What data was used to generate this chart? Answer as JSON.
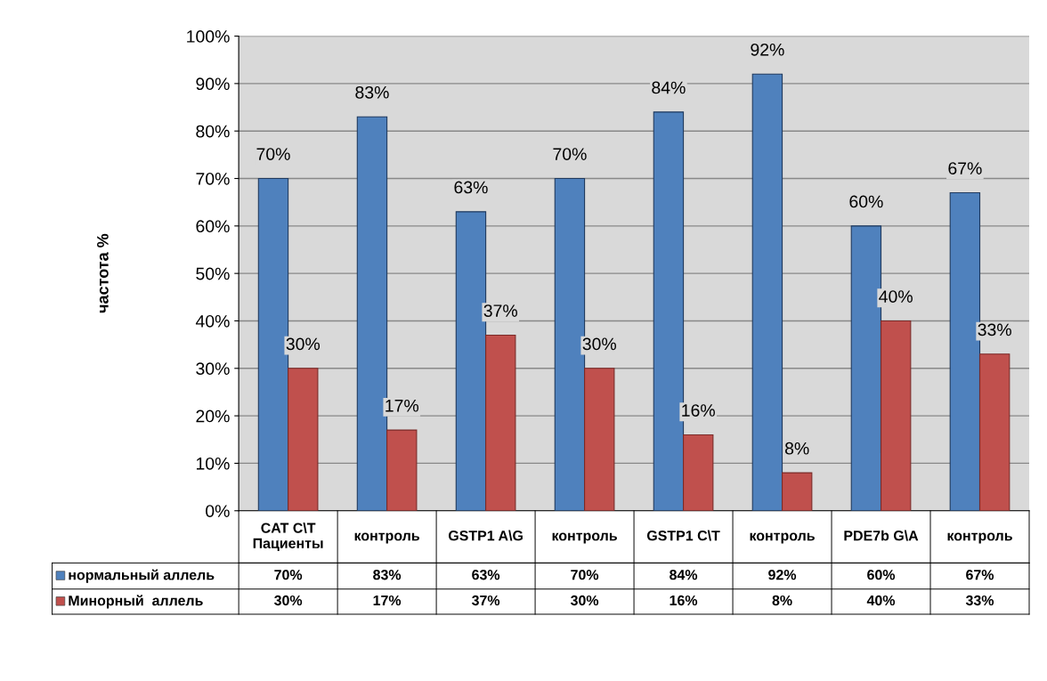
{
  "chart_data": {
    "type": "bar",
    "ylabel": "частота %",
    "categories": [
      "CAT C\\T\nПациенты",
      "контроль",
      "GSTP1 A\\G",
      "контроль",
      "GSTP1 C\\T",
      "контроль",
      "PDE7b G\\A",
      "контроль"
    ],
    "series": [
      {
        "name": "нормальный аллель",
        "color": "#4f81bd",
        "values": [
          70,
          83,
          63,
          70,
          84,
          92,
          60,
          67
        ],
        "value_labels": [
          "70%",
          "83%",
          "63%",
          "70%",
          "84%",
          "92%",
          "60%",
          "67%"
        ]
      },
      {
        "name": "Минорный  аллель",
        "color": "#c0504d",
        "values": [
          30,
          17,
          37,
          30,
          16,
          8,
          40,
          33
        ],
        "value_labels": [
          "30%",
          "17%",
          "37%",
          "30%",
          "16%",
          "8%",
          "40%",
          "33%"
        ]
      }
    ],
    "ylim": [
      0,
      100
    ],
    "yticks": [
      {
        "value": 0,
        "label": "0%"
      },
      {
        "value": 10,
        "label": "10%"
      },
      {
        "value": 20,
        "label": "20%"
      },
      {
        "value": 30,
        "label": "30%"
      },
      {
        "value": 40,
        "label": "40%"
      },
      {
        "value": 50,
        "label": "50%"
      },
      {
        "value": 60,
        "label": "60%"
      },
      {
        "value": 70,
        "label": "70%"
      },
      {
        "value": 80,
        "label": "80%"
      },
      {
        "value": 90,
        "label": "90%"
      },
      {
        "value": 100,
        "label": "100%"
      }
    ],
    "grid": "y",
    "legend": "bottom"
  }
}
